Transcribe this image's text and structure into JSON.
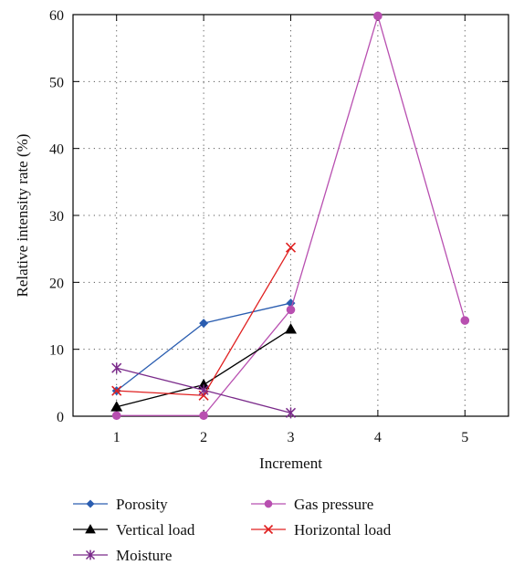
{
  "chart_data": {
    "type": "line",
    "title": "",
    "xlabel": "Increment",
    "ylabel": "Relative intensity rate (%)",
    "xlim": [
      0.5,
      5.5
    ],
    "ylim": [
      0,
      60
    ],
    "xticks": [
      1,
      2,
      3,
      4,
      5
    ],
    "yticks": [
      0,
      10,
      20,
      30,
      40,
      50,
      60
    ],
    "grid": true,
    "legend_position": "bottom",
    "series": [
      {
        "name": "Porosity",
        "color": "#2a5db0",
        "marker": "diamond",
        "x": [
          1,
          2,
          3
        ],
        "values": [
          3.8,
          13.9,
          16.9
        ]
      },
      {
        "name": "Gas pressure",
        "color": "#b84fb0",
        "marker": "circle",
        "x": [
          1,
          2,
          3,
          4,
          5
        ],
        "values": [
          0.1,
          0.1,
          15.9,
          59.8,
          14.3
        ]
      },
      {
        "name": "Vertical load",
        "color": "#000000",
        "marker": "triangle",
        "x": [
          1,
          2,
          3
        ],
        "values": [
          1.4,
          4.7,
          13.0
        ]
      },
      {
        "name": "Horizontal load",
        "color": "#e02020",
        "marker": "x",
        "x": [
          1,
          2,
          3
        ],
        "values": [
          3.8,
          3.1,
          25.2
        ]
      },
      {
        "name": "Moisture",
        "color": "#7a2a8a",
        "marker": "star",
        "x": [
          1,
          2,
          3
        ],
        "values": [
          7.2,
          3.9,
          0.5
        ]
      }
    ]
  }
}
